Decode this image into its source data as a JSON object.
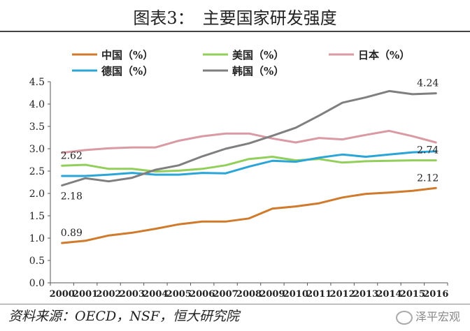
{
  "title": "图表3：　主要国家研发强度",
  "source": "资料来源：OECD，NSF，恒大研究院",
  "watermark": "泽平宏观",
  "chart_data": {
    "type": "line",
    "x": [
      2000,
      2001,
      2002,
      2003,
      2004,
      2005,
      2006,
      2007,
      2008,
      2009,
      2010,
      2011,
      2012,
      2013,
      2014,
      2015,
      2016
    ],
    "ylim": [
      0,
      4.5
    ],
    "yticks": [
      "0.0",
      "0.5",
      "1.0",
      "1.5",
      "2.0",
      "2.5",
      "3.0",
      "3.5",
      "4.0",
      "4.5"
    ],
    "xlabel": "",
    "ylabel": "",
    "series": [
      {
        "name": "中国（%）",
        "color": "#d07a2c",
        "values": [
          0.89,
          0.94,
          1.06,
          1.12,
          1.21,
          1.31,
          1.37,
          1.37,
          1.44,
          1.66,
          1.71,
          1.78,
          1.91,
          1.99,
          2.02,
          2.06,
          2.12
        ]
      },
      {
        "name": "美国（%）",
        "color": "#92cf5a",
        "values": [
          2.62,
          2.64,
          2.55,
          2.55,
          2.49,
          2.51,
          2.55,
          2.63,
          2.77,
          2.82,
          2.74,
          2.77,
          2.69,
          2.72,
          2.73,
          2.74,
          2.74
        ]
      },
      {
        "name": "日本（%）",
        "color": "#d99aa3",
        "values": [
          2.91,
          2.97,
          3.01,
          3.03,
          3.03,
          3.18,
          3.28,
          3.34,
          3.34,
          3.23,
          3.14,
          3.24,
          3.21,
          3.31,
          3.4,
          3.28,
          3.14
        ]
      },
      {
        "name": "德国（%）",
        "color": "#2aa5d8",
        "values": [
          2.39,
          2.39,
          2.42,
          2.46,
          2.42,
          2.42,
          2.46,
          2.45,
          2.6,
          2.73,
          2.71,
          2.8,
          2.87,
          2.82,
          2.87,
          2.92,
          2.94
        ]
      },
      {
        "name": "韩国（%）",
        "color": "#7f7f7f",
        "values": [
          2.18,
          2.34,
          2.27,
          2.35,
          2.53,
          2.63,
          2.83,
          3.0,
          3.12,
          3.29,
          3.47,
          3.74,
          4.03,
          4.15,
          4.29,
          4.22,
          4.24
        ]
      }
    ],
    "annotations": [
      {
        "text": "0.89",
        "series": 0,
        "index": 0,
        "pos": "above"
      },
      {
        "text": "2.12",
        "series": 0,
        "index": 16,
        "pos": "above"
      },
      {
        "text": "2.62",
        "series": 1,
        "index": 0,
        "pos": "above"
      },
      {
        "text": "2.74",
        "series": 1,
        "index": 16,
        "pos": "above"
      },
      {
        "text": "2.18",
        "series": 4,
        "index": 0,
        "pos": "below"
      },
      {
        "text": "4.24",
        "series": 4,
        "index": 16,
        "pos": "above"
      }
    ]
  }
}
